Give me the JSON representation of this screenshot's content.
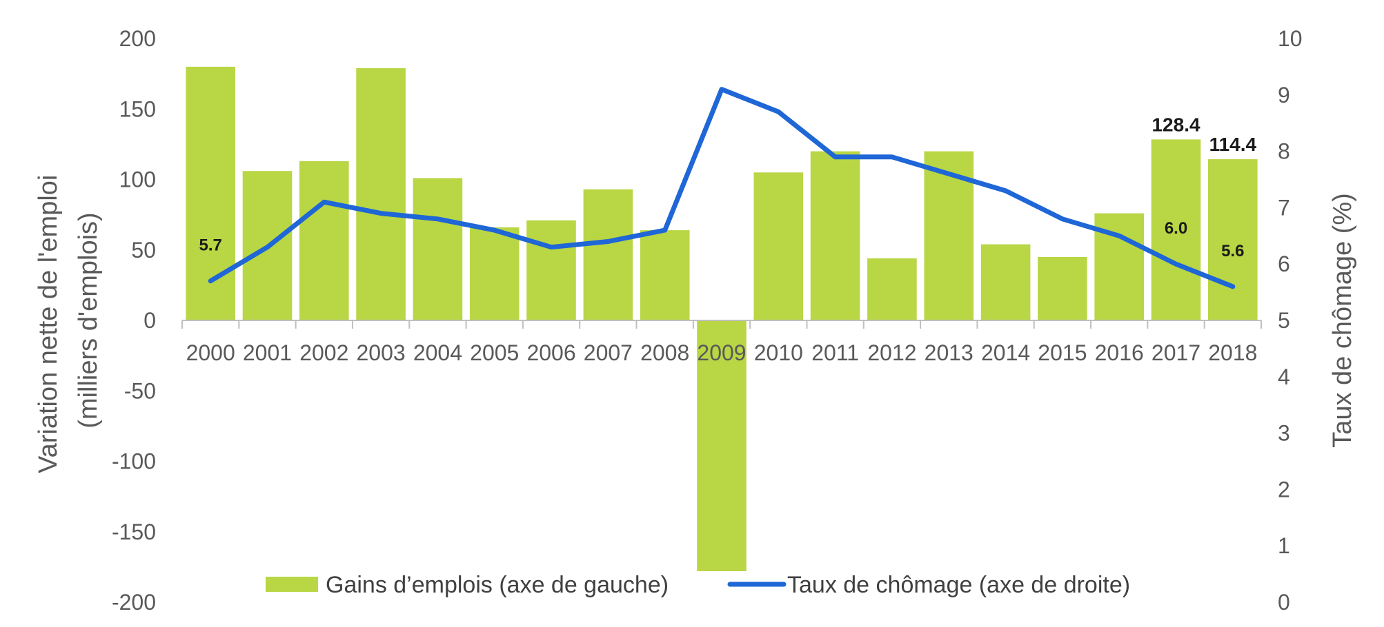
{
  "chart_data": {
    "type": "bar",
    "categories": [
      "2000",
      "2001",
      "2002",
      "2003",
      "2004",
      "2005",
      "2006",
      "2007",
      "2008",
      "2009",
      "2010",
      "2011",
      "2012",
      "2013",
      "2014",
      "2015",
      "2016",
      "2017",
      "2018"
    ],
    "series": [
      {
        "name": "Gains d’emplois (axe de gauche)",
        "type": "bar",
        "axis": "left",
        "color": "#B9D645",
        "values": [
          180,
          106,
          113,
          179,
          101,
          66,
          71,
          93,
          64,
          -178,
          105,
          120,
          44,
          120,
          54,
          45,
          76,
          128.4,
          114.4
        ]
      },
      {
        "name": "Taux de chômage (axe de droite)",
        "type": "line",
        "axis": "right",
        "color": "#1F66D6",
        "values": [
          5.7,
          6.3,
          7.1,
          6.9,
          6.8,
          6.6,
          6.3,
          6.4,
          6.6,
          9.1,
          8.7,
          7.9,
          7.9,
          7.6,
          7.3,
          6.8,
          6.5,
          6.0,
          5.6
        ]
      }
    ],
    "data_labels": [
      {
        "series": 0,
        "category": "2017",
        "text": "128.4"
      },
      {
        "series": 0,
        "category": "2018",
        "text": "114.4"
      },
      {
        "series": 1,
        "category": "2000",
        "text": "5.7"
      },
      {
        "series": 1,
        "category": "2017",
        "text": "6.0"
      },
      {
        "series": 1,
        "category": "2018",
        "text": "5.6"
      }
    ],
    "y_left": {
      "label_line1": "Variation nette de l'emploi",
      "label_line2": "(milliers d'emplois)",
      "ylim": [
        -200,
        200
      ],
      "ticks": [
        "200",
        "150",
        "100",
        "50",
        "0",
        "-50",
        "-100",
        "-150",
        "-200"
      ]
    },
    "y_right": {
      "label": "Taux de chômage (%)",
      "ylim": [
        0,
        10
      ],
      "ticks": [
        "10",
        "9",
        "8",
        "7",
        "6",
        "5",
        "4",
        "3",
        "2",
        "1",
        "0"
      ]
    },
    "grid": false,
    "legend_position": "bottom-center"
  }
}
